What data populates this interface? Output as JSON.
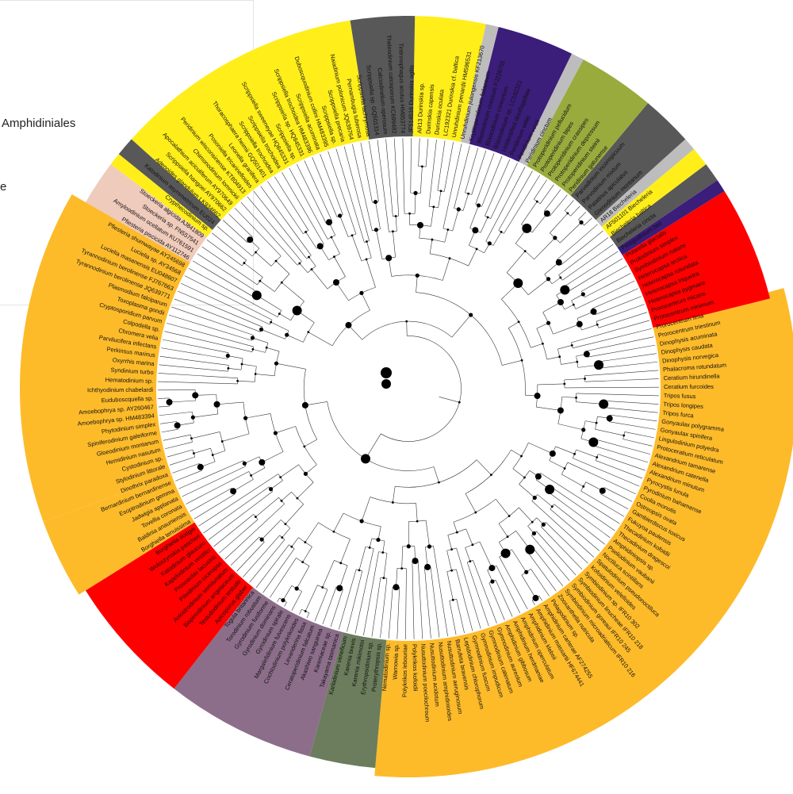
{
  "legend": {
    "entries": [
      "Amphidiniales",
      "e"
    ]
  },
  "clade_colors": {
    "orange": "#fdbb2a",
    "red": "#ff0000",
    "dark_gray": "#585858",
    "light_gray": "#bdbdbd",
    "yellow": "#ffee1a",
    "indigo": "#3b1d7a",
    "olive": "#9aab3e",
    "pink": "#efcbbc",
    "sage": "#6b7d5c",
    "mauve": "#8c6e8a"
  },
  "tips": [
    "Tyrannodinium berolinense JQ639771",
    "Tyrannodinium berolinense FJ767663",
    "Lucielia masanensis EU048607",
    "Lucielia sp. AY34568",
    "Pfiesteria shumwayae AY245698",
    "Pfiesteria piscicida AY112746",
    "Amyloodinium ocellatum KU761591",
    "Stoeckeria sp. FN557541",
    "Stoeckeria algicida AJ841809",
    "Crypthecodinium sp.",
    "Katodinium asymmetricum EU024",
    "Adenoides glandulum LK934662",
    "Scrippsiella hangoei AY970662",
    "Apocalathium aciculiferum AY970649",
    "Chimonodinium lomnickii",
    "Peridinium wisconsinense KT804913",
    "Posoniella tricarinelloides",
    "Leonella granifera",
    "Thoracosphaera heimii GQ501401",
    "Scrippsiella trochoidea",
    "Scrippsiella trochoidea",
    "Scrippsiella sweeneyae HQ845331",
    "Scrippsiella sp.",
    "Scrippsiella sp. HQ845331",
    "Scrippsiella trochoidea HM483396",
    "Scrippsiella acuminata",
    "Duboscquodinium collini HM483395",
    "Scrippsiella sp.",
    "Scrippsiella precaria",
    "Naiadinium polonicum JQ639764",
    "Pernambugia tuberosa",
    "Scrippsiella lachrymosa",
    "Scrippsiella sp. GQ501314",
    "Calciodinellum operosum",
    "Theleodinium calcisporum KC699482",
    "Tintinnophagus acutus HM853774",
    "JF514516 Durinskia agilis",
    "AR13 Durinskia sp.",
    "Durinskia capensis",
    "Durinskia oculata",
    "LC192321 Durinskia cf. baltica",
    "Unruhdinium penardii HM596531",
    "Unruhdinium jiulongensis KF213670",
    "Kryptoperidinium foliaceum",
    "Blastodinium crassum FJ228701",
    "Blastodinium contortum",
    "Blastodinium sp. LC192321",
    "Unidentified dinoflagellate",
    "Peridinium willei",
    "Peridinium volzii",
    "Peridinium cinctum",
    "Protoperidinium pellucidum",
    "Protoperidinium bipes",
    "Protoperidinium crassipes",
    "Protoperidinium depressum",
    "Protoperidinium steinii",
    "Peridinium gatunense",
    "Parvodinium inconspicuum",
    "Parvodinium mixtum",
    "Palatinus apiculatus",
    "Glenodinium montanum",
    "AR18 Biecheleria",
    "AF501101 Biecheleria",
    "Biecheleria baltica",
    "Biecheleria cincta",
    "Pelagodinium beii",
    "Polarella glacialis",
    "Protodinium simplex",
    "Symbiodinium natans",
    "Heterocapsa arctica",
    "Heterocapsa rotundata",
    "Heterocapsa triquetra",
    "Heterocapsa pygmaea",
    "Prorocentrum micans",
    "Prorocentrum minimum",
    "Prorocentrum lima",
    "Prorocentrum triestinum",
    "Dinophysis acuminata",
    "Dinophysis caudata",
    "Dinophysis norvegica",
    "Phalacroma rotundatum",
    "Ceratium hirundinella",
    "Ceratium furcoides",
    "Tripos fusus",
    "Tripos longipes",
    "Tripos furca",
    "Gonyaulax polygramma",
    "Gonyaulax spinifera",
    "Lingulodinium polyedra",
    "Protoceratium reticulatum",
    "Alexandrium tamarense",
    "Alexandrium catenella",
    "Alexandrium minutum",
    "Pyrocystis lunula",
    "Pyrodinium bahamense",
    "Coolia monotis",
    "Ostreopsis ovata",
    "Gambierdiscus toxicus",
    "Fukuyoa paulensis",
    "Thecadinium kofoidii",
    "Thecadinium dragescoi",
    "Amphidiniopsis sp.",
    "Pseliodinium vaubanii",
    "Noctiluca scintillans",
    "Spatulodinium pseudonoctiluca",
    "Kofoidinium velelloides",
    "Symbiodinium sp. IFR10 302",
    "Symbiodinium linucheae IFR10 218",
    "Symbiodinium goreaui IFR10 245",
    "Symbiodinium microadriaticum IFR10 216",
    "Zooxanthella nutricula",
    "Pelagodinium sp.",
    "Amphidinium carterae AF274255",
    "Amphidinium massartii HF674441",
    "Amphidinium klebsii",
    "Amphidinium operculatum",
    "Amphidinium herdmaniae",
    "Amphidinium gibbosum",
    "Gymnodinium aureolum",
    "Gymnodinium catenatum",
    "Gymnodinium impudicum",
    "Gymnodinium fuscum",
    "Lepidodinium chlorophorum",
    "Barrufeta bravensis",
    "Nusuttodinium aeruginosum",
    "Nusuttodinium amphidinioides",
    "Nusuttodinium acidotum",
    "Nusuttodinium poecilochroum",
    "Polykrikos kofoidii",
    "Polykrikos lebouriae",
    "Warnowia sp.",
    "Nematodinium sp.",
    "Proterythropsis sp.",
    "Erythropsidinium sp.",
    "Karenia mikimotoi",
    "Karenia brevis",
    "Karlodinium veneficum",
    "Takayama tasmanica",
    "Kareniaceae sp.",
    "Akashiwo sanguinea",
    "Ceratoperidinium falcatum",
    "Levanderina fissa",
    "Cochlodinium polykrikoides",
    "Margalefidinium fulvescens",
    "Gyrodinium spirale",
    "Gyrodinium dominans",
    "Gyrodinium fusiforme",
    "Torodinium robustum",
    "Togula britannica",
    "Apicoporus glaber",
    "Testudodinium testudo",
    "Bispinodinium angelaceum",
    "Ankistrodinium semilunatum",
    "Pileidinium ciceropse",
    "Prosoaulax lacustris",
    "Kapelodinium vestifici",
    "Katodinium glaucum",
    "Woloszynskia pascheri",
    "Borghiella dodgei",
    "Borghiella tenuissima",
    "Baldinia anauniensis",
    "Tovellia coronata",
    "Jadwigia applanata",
    "Esoptrodinium gemma",
    "Bernardinium bernardinense",
    "Dinothrix paradoxa",
    "Stylodinium littorale",
    "Cystodinium sp.",
    "Hemidinium nasutum",
    "Gloeodinium montanum",
    "Spiniferodinium galeiforme",
    "Phytodinium simplex",
    "Amoebophrya sp. HM483394",
    "Amoebophrya sp. AY260467",
    "Euduboscquella sp.",
    "Ichthyodinium chabelardi",
    "Hematodinium sp.",
    "Syndinium turbo",
    "Oxyrrhis marina",
    "Perkinsus marinus",
    "Parvilucifera infectans",
    "Chromera velia",
    "Colpodella sp.",
    "Cryptosporidium parvum",
    "Toxoplasma gondii",
    "Plasmodium falciparum"
  ]
}
